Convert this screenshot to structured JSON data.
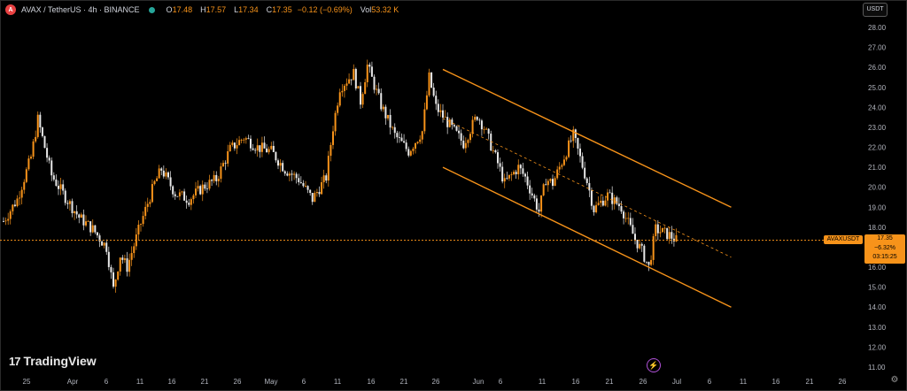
{
  "header": {
    "symbol_title": "AVAX / TetherUS · 4h · BINANCE",
    "ohlc": [
      {
        "label": "O",
        "value": "17.48"
      },
      {
        "label": "H",
        "value": "17.57"
      },
      {
        "label": "L",
        "value": "17.34"
      },
      {
        "label": "C",
        "value": "17.35"
      },
      {
        "label": "",
        "value": "−0.12 (−0.69%)"
      },
      {
        "label": "Vol",
        "value": "53.32 K"
      }
    ]
  },
  "currency_button": "USDT",
  "price_tag": {
    "symbol": "AVAXUSDT",
    "price": "17.35",
    "change": "−6.32%",
    "countdown": "03:15:25"
  },
  "brand": "TradingView",
  "colors": {
    "up": "#f7931a",
    "down": "#e8e8e8",
    "channel": "#f7931a",
    "background": "#000000"
  },
  "chart_data": {
    "type": "candlestick",
    "y_ticks": [
      "28.00",
      "27.00",
      "26.00",
      "25.00",
      "24.00",
      "23.00",
      "22.00",
      "21.00",
      "20.00",
      "19.00",
      "18.00",
      "17.00",
      "16.00",
      "15.00",
      "14.00",
      "13.00",
      "12.00",
      "11.00"
    ],
    "ylim": [
      10.6,
      28.5
    ],
    "x_ticks": [
      "25",
      "Apr",
      "6",
      "11",
      "16",
      "21",
      "26",
      "May",
      "6",
      "11",
      "16",
      "21",
      "26",
      "Jun",
      "6",
      "11",
      "16",
      "21",
      "26",
      "Jul",
      "6",
      "11",
      "16",
      "21",
      "26"
    ],
    "series": [
      {
        "x": 0,
        "y": 18.3
      },
      {
        "x": 2,
        "y": 19.4
      },
      {
        "x": 4,
        "y": 21.5
      },
      {
        "x": 5,
        "y": 23.4
      },
      {
        "x": 7,
        "y": 20.6
      },
      {
        "x": 9,
        "y": 19.5
      },
      {
        "x": 11,
        "y": 18.5
      },
      {
        "x": 13,
        "y": 17.9
      },
      {
        "x": 15,
        "y": 17.0
      },
      {
        "x": 16,
        "y": 14.9
      },
      {
        "x": 17,
        "y": 16.6
      },
      {
        "x": 18,
        "y": 16.0
      },
      {
        "x": 20,
        "y": 18.2
      },
      {
        "x": 22,
        "y": 20.2
      },
      {
        "x": 23,
        "y": 20.9
      },
      {
        "x": 25,
        "y": 19.7
      },
      {
        "x": 27,
        "y": 19.4
      },
      {
        "x": 29,
        "y": 20.0
      },
      {
        "x": 31,
        "y": 20.4
      },
      {
        "x": 33,
        "y": 21.9
      },
      {
        "x": 35,
        "y": 22.5
      },
      {
        "x": 37,
        "y": 22.0
      },
      {
        "x": 39,
        "y": 21.8
      },
      {
        "x": 41,
        "y": 20.9
      },
      {
        "x": 43,
        "y": 20.4
      },
      {
        "x": 45,
        "y": 19.4
      },
      {
        "x": 47,
        "y": 20.5
      },
      {
        "x": 48,
        "y": 23.0
      },
      {
        "x": 49,
        "y": 25.0
      },
      {
        "x": 51,
        "y": 25.7
      },
      {
        "x": 52,
        "y": 24.3
      },
      {
        "x": 53,
        "y": 26.1
      },
      {
        "x": 55,
        "y": 24.1
      },
      {
        "x": 57,
        "y": 22.6
      },
      {
        "x": 59,
        "y": 21.8
      },
      {
        "x": 61,
        "y": 22.8
      },
      {
        "x": 62,
        "y": 25.5
      },
      {
        "x": 63,
        "y": 24.0
      },
      {
        "x": 65,
        "y": 23.1
      },
      {
        "x": 67,
        "y": 22.2
      },
      {
        "x": 69,
        "y": 23.6
      },
      {
        "x": 70,
        "y": 23.0
      },
      {
        "x": 72,
        "y": 21.2
      },
      {
        "x": 73,
        "y": 20.2
      },
      {
        "x": 75,
        "y": 21.0
      },
      {
        "x": 76,
        "y": 20.5
      },
      {
        "x": 78,
        "y": 18.8
      },
      {
        "x": 79,
        "y": 20.4
      },
      {
        "x": 80,
        "y": 20.2
      },
      {
        "x": 82,
        "y": 21.8
      },
      {
        "x": 83,
        "y": 22.6
      },
      {
        "x": 85,
        "y": 20.3
      },
      {
        "x": 86,
        "y": 18.9
      },
      {
        "x": 88,
        "y": 19.6
      },
      {
        "x": 89,
        "y": 19.3
      },
      {
        "x": 90,
        "y": 19.0
      },
      {
        "x": 92,
        "y": 17.4
      },
      {
        "x": 93,
        "y": 16.8
      },
      {
        "x": 94,
        "y": 16.0
      },
      {
        "x": 95,
        "y": 17.9
      },
      {
        "x": 97,
        "y": 17.6
      },
      {
        "x": 98,
        "y": 17.35
      }
    ],
    "channel": {
      "upper": [
        {
          "x": 64,
          "y": 25.9
        },
        {
          "x": 106,
          "y": 19.0
        }
      ],
      "lower": [
        {
          "x": 64,
          "y": 21.0
        },
        {
          "x": 106,
          "y": 14.0
        }
      ],
      "mid": [
        {
          "x": 64,
          "y": 23.45
        },
        {
          "x": 106,
          "y": 16.5
        }
      ]
    },
    "last_price": 17.35
  }
}
